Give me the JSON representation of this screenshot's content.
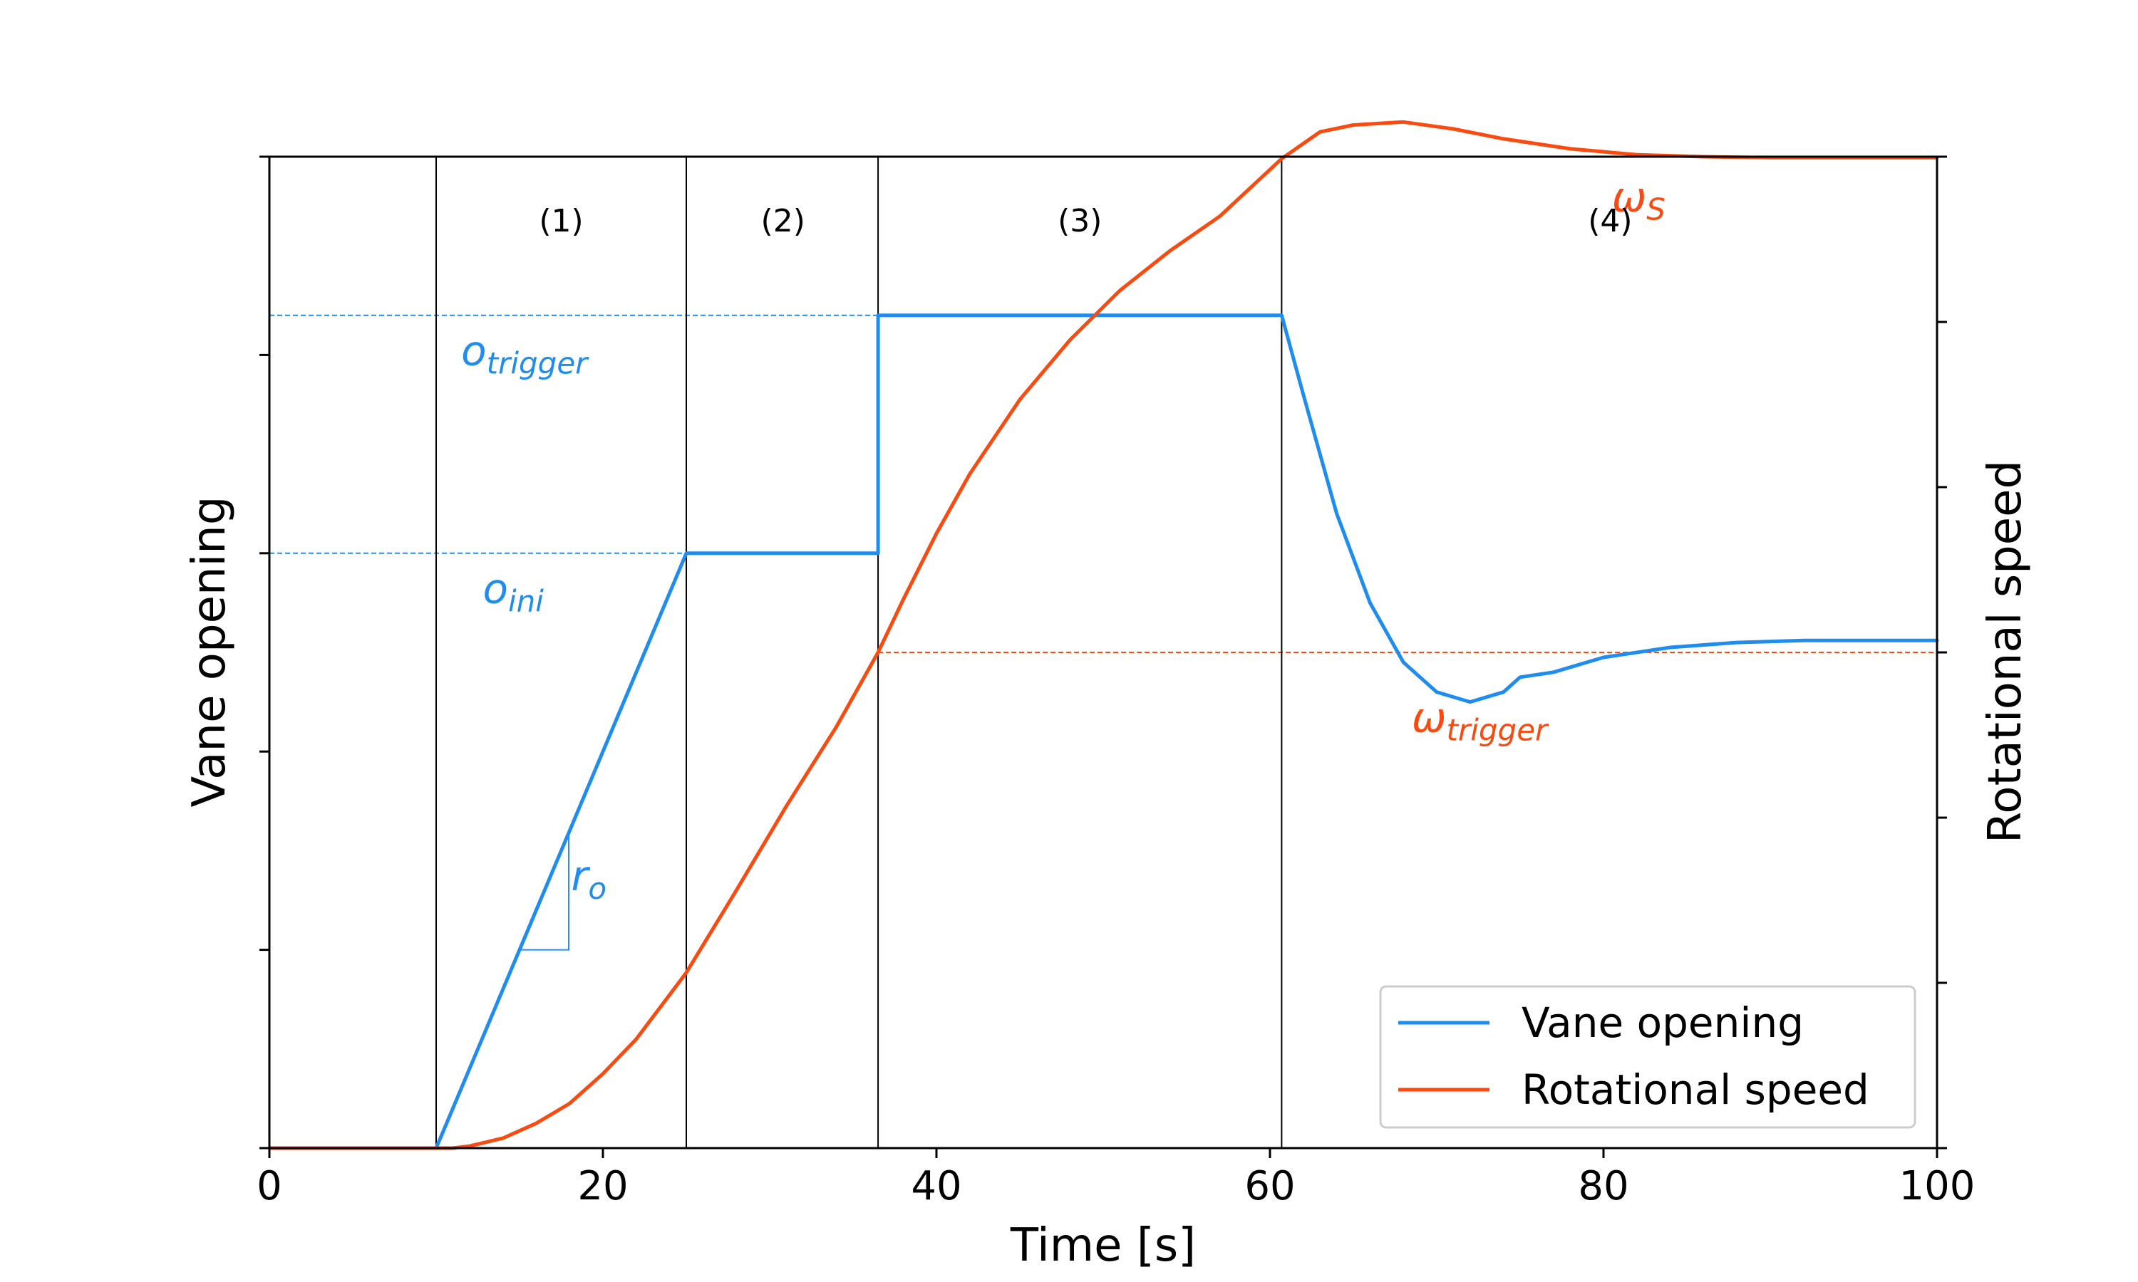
{
  "chart_data": {
    "type": "line",
    "title": "",
    "xlabel": "Time [s]",
    "ylabel_left": "Vane opening",
    "ylabel_right": "Rotational speed",
    "xlim": [
      0,
      100
    ],
    "ylim_left": [
      0,
      1
    ],
    "ylim_right": [
      0,
      1
    ],
    "x_ticks": [
      0,
      20,
      40,
      60,
      80,
      100
    ],
    "x_tick_labels": [
      "0",
      "20",
      "40",
      "60",
      "80",
      "100"
    ],
    "left_ticks": [
      0,
      0.2,
      0.4,
      0.6,
      0.8,
      1.0
    ],
    "right_ticks": [
      0,
      0.1667,
      0.3333,
      0.5,
      0.6667,
      0.8333,
      1.0
    ],
    "phase_boundaries": [
      10,
      25,
      36.5,
      60.7
    ],
    "phases": [
      {
        "label": "(1)",
        "x": 17.5
      },
      {
        "label": "(2)",
        "x": 30.8
      },
      {
        "label": "(3)",
        "x": 48.6
      },
      {
        "label": "(4)",
        "x": 80.4
      }
    ],
    "colors": {
      "vane": "#1f8ded",
      "speed": "#fa4a0f",
      "axis": "#000000"
    },
    "series": [
      {
        "name": "Vane opening",
        "axis": "left",
        "x": [
          0,
          10,
          25,
          36.5,
          36.5,
          60.7,
          62,
          64,
          66,
          68,
          70,
          72,
          74,
          75,
          77,
          80,
          84,
          88,
          92,
          96,
          100
        ],
        "values": [
          0,
          0,
          0.6,
          0.6,
          0.84,
          0.84,
          0.76,
          0.64,
          0.55,
          0.49,
          0.46,
          0.45,
          0.46,
          0.475,
          0.48,
          0.495,
          0.505,
          0.51,
          0.512,
          0.512,
          0.512
        ]
      },
      {
        "name": "Rotational speed",
        "axis": "right",
        "x": [
          0,
          11,
          12,
          14,
          16,
          18,
          20,
          22,
          25,
          28,
          31,
          34,
          36.5,
          38,
          40,
          42,
          45,
          48,
          51,
          54,
          57,
          60.7,
          63,
          65,
          68,
          71,
          74,
          78,
          82,
          86,
          90,
          95,
          100
        ],
        "values": [
          0,
          0,
          0.002,
          0.01,
          0.025,
          0.045,
          0.075,
          0.11,
          0.177,
          0.26,
          0.345,
          0.425,
          0.5,
          0.553,
          0.62,
          0.68,
          0.755,
          0.815,
          0.865,
          0.905,
          0.94,
          0.998,
          1.025,
          1.032,
          1.035,
          1.028,
          1.018,
          1.008,
          1.002,
          1.0,
          0.999,
          0.999,
          0.999
        ]
      }
    ],
    "reference_lines": [
      {
        "axis": "left",
        "y": 0.84,
        "from": 0,
        "to": 36.5,
        "color": "#1f8ded"
      },
      {
        "axis": "left",
        "y": 0.6,
        "from": 0,
        "to": 25,
        "color": "#1f8ded"
      },
      {
        "axis": "right",
        "y": 1.0,
        "from": 60.7,
        "to": 100,
        "color": "#fa4a0f"
      },
      {
        "axis": "right",
        "y": 0.5,
        "from": 36.5,
        "to": 100,
        "color": "#fa4a0f"
      }
    ],
    "annotations": [
      {
        "base": "o",
        "sub": "trigger",
        "color": "#1f8ded",
        "x": 11.5,
        "y_axis": "left",
        "y": 0.79
      },
      {
        "base": "o",
        "sub": "ini",
        "color": "#1f8ded",
        "x": 12.8,
        "y_axis": "left",
        "y": 0.55
      },
      {
        "base": "r",
        "sub": "o",
        "color": "#1f8ded",
        "x": 18.1,
        "y_axis": "left",
        "y": 0.26
      },
      {
        "base": "ω",
        "sub": "S",
        "color": "#fa4a0f",
        "x": 80.5,
        "y_axis": "right",
        "y": 0.945
      },
      {
        "base": "ω",
        "sub": "trigger",
        "color": "#fa4a0f",
        "x": 68.5,
        "y_axis": "right",
        "y": 0.42
      }
    ],
    "slope_triangle": {
      "x1": 15,
      "x2": 17.95,
      "y1": 0.2,
      "y2": 0.318
    },
    "legend": {
      "position": "lower-right",
      "entries": [
        "Vane opening",
        "Rotational speed"
      ]
    }
  }
}
